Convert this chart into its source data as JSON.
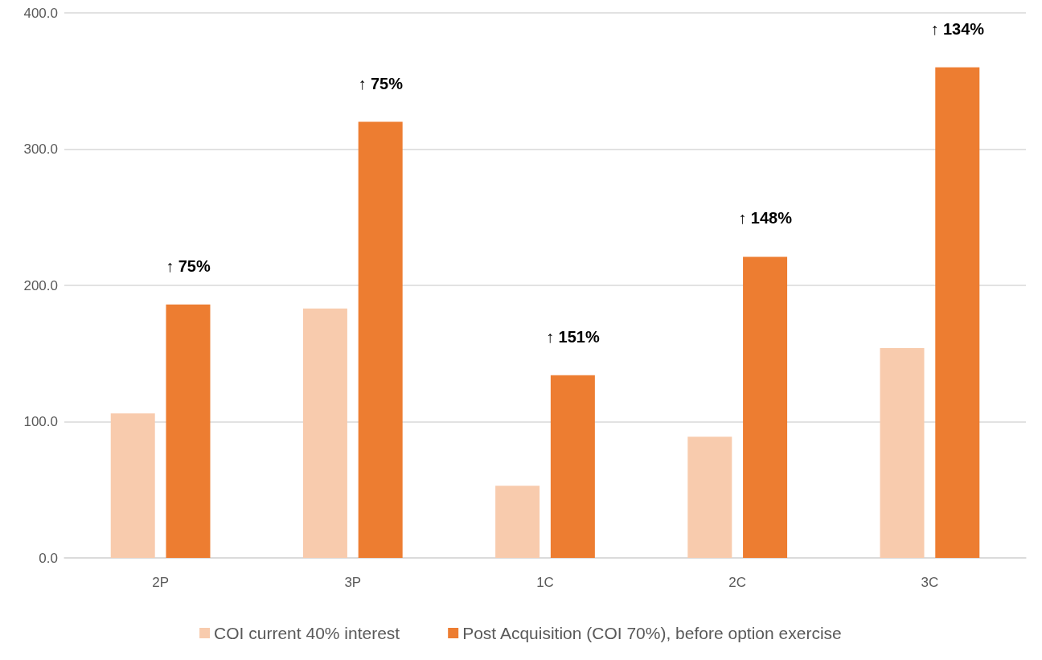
{
  "chart_data": {
    "type": "bar",
    "categories": [
      "2P",
      "3P",
      "1C",
      "2C",
      "3C"
    ],
    "series": [
      {
        "name": "COI current 40% interest",
        "color": "#f8cbad",
        "values": [
          106,
          183,
          53,
          89,
          154
        ]
      },
      {
        "name": "Post Acquisition (COI 70%), before option exercise",
        "color": "#ed7d31",
        "values": [
          186,
          320,
          134,
          221,
          360
        ]
      }
    ],
    "ylim": [
      0,
      400
    ],
    "yticks": [
      {
        "value": 0,
        "label": "0.0"
      },
      {
        "value": 100,
        "label": "100.0"
      },
      {
        "value": 200,
        "label": "200.0"
      },
      {
        "value": 300,
        "label": "300.0"
      },
      {
        "value": 400,
        "label": "400.0"
      }
    ],
    "grid": "y",
    "legend": "bottom",
    "annotations": [
      "↑ 75%",
      "↑ 75%",
      "↑ 151%",
      "↑ 148%",
      "↑ 134%"
    ]
  }
}
